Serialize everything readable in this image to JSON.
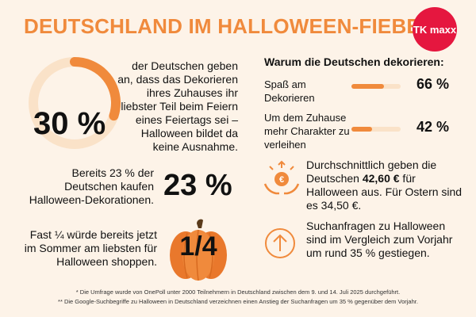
{
  "header": {
    "title": "DEUTSCHLAND IM HALLOWEEN-FIEBER",
    "logo_text": "TK maxx",
    "logo_color": "#e5173f"
  },
  "colors": {
    "accent": "#f08a3c",
    "accent_light": "#fae2c8",
    "background": "#fdf3e8"
  },
  "stat_decorating": {
    "value_label": "30 %",
    "value_fraction": 0.3,
    "text": "der Deutschen geben an, dass das Dekorieren ihres Zuhauses ihr liebster Teil beim Feiern eines Feiertags sei – Halloween bildet da keine Ausnahme."
  },
  "stat_buy": {
    "value_label": "23 %",
    "text": "Bereits 23 % der Deutschen kaufen Halloween-Dekorationen."
  },
  "stat_summer": {
    "value_label": "1/4",
    "text": "Fast ¼ würde bereits jetzt im Sommer am liebsten für Halloween shoppen."
  },
  "chart_data": {
    "type": "bar",
    "title": "Warum die Deutschen dekorieren:",
    "categories": [
      "Spaß am Dekorieren",
      "Um dem Zuhause mehr Charakter zu verleihen"
    ],
    "values": [
      66,
      42
    ],
    "value_labels": [
      "66 %",
      "42 %"
    ],
    "ylim": [
      0,
      100
    ]
  },
  "spending": {
    "icon": "euro-coins-hands-icon",
    "text_before": "Durchschnittlich geben die Deutschen ",
    "amount": "42,60 €",
    "text_after": " für Halloween aus. Für Ostern sind es 34,50 €."
  },
  "search": {
    "icon": "arrow-up-circle-icon",
    "text": "Suchanfragen zu Halloween sind im Vergleich zum Vorjahr um rund 35 % gestiegen."
  },
  "footnotes": [
    "* Die Umfrage wurde von OnePoll unter 2000 Teilnehmern in Deutschland zwischen dem 9. und 14. Juli 2025 durchgeführt.",
    "** Die Google-Suchbegriffe zu Halloween in Deutschland verzeichnen einen Anstieg der Suchanfragen um 35 % gegenüber dem Vorjahr."
  ]
}
